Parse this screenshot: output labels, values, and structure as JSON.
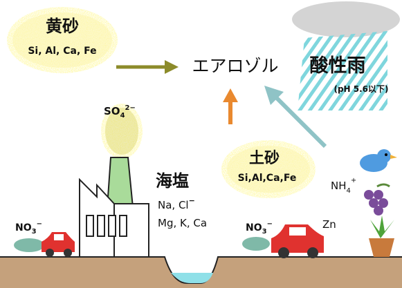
{
  "yellow_sand": {
    "title": "黄砂",
    "elements": "Si, Al, Ca, Fe"
  },
  "aerosol": "エアロゾル",
  "acid_rain": {
    "title": "酸性雨",
    "note": "(pH 5.6以下)"
  },
  "sulfate": {
    "base": "SO",
    "sub": "4",
    "sup": "2−"
  },
  "soil": {
    "title": "土砂",
    "elements": "Si,Al,Ca,Fe"
  },
  "sea_salt": {
    "title": "海塩",
    "line1": {
      "base": "Na, Cl",
      "sup": "−"
    },
    "line2": "Mg, K, Ca"
  },
  "ammonium": {
    "base": "NH",
    "sub": "4",
    "sup": "+"
  },
  "nitrate_left": {
    "base": "NO",
    "sub": "3",
    "sup": "−"
  },
  "nitrate_right": {
    "base": "NO",
    "sub": "3",
    "sup": "−"
  },
  "zinc": "Zn"
}
